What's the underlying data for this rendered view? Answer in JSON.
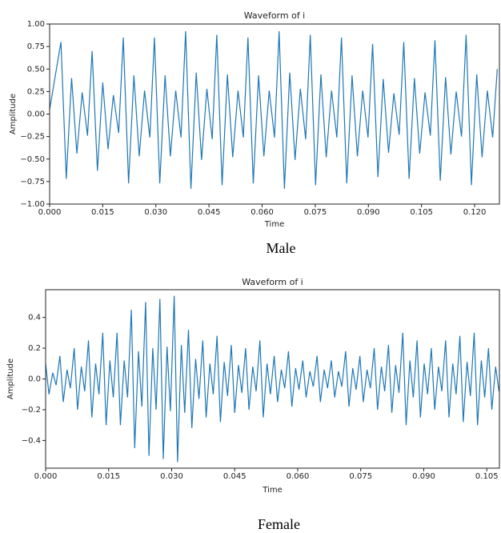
{
  "chart_data": [
    {
      "type": "line",
      "title": "Waveform of i",
      "x_label": "Time",
      "y_label": "Amplitude",
      "caption": "Male",
      "color": "#1f77b4",
      "xlim": [
        0,
        0.127
      ],
      "ylim": [
        -1,
        1
      ],
      "xticks": [
        {
          "value": 0,
          "label": "0.000"
        },
        {
          "value": 0.015,
          "label": "0.015"
        },
        {
          "value": 0.03,
          "label": "0.030"
        },
        {
          "value": 0.045,
          "label": "0.045"
        },
        {
          "value": 0.06,
          "label": "0.060"
        },
        {
          "value": 0.075,
          "label": "0.075"
        },
        {
          "value": 0.09,
          "label": "0.090"
        },
        {
          "value": 0.105,
          "label": "0.105"
        },
        {
          "value": 0.12,
          "label": "0.120"
        }
      ],
      "yticks": [
        {
          "value": -1,
          "label": "−1.00"
        },
        {
          "value": -0.75,
          "label": "−0.75"
        },
        {
          "value": -0.5,
          "label": "−0.50"
        },
        {
          "value": -0.25,
          "label": "−0.25"
        },
        {
          "value": 0,
          "label": "0.00"
        },
        {
          "value": 0.25,
          "label": "0.25"
        },
        {
          "value": 0.5,
          "label": "0.50"
        },
        {
          "value": 0.75,
          "label": "0.75"
        },
        {
          "value": 1,
          "label": "1.00"
        }
      ],
      "x": [
        0,
        0.0032,
        0.0047,
        0.0062,
        0.0077,
        0.0092,
        0.0107,
        0.012,
        0.0135,
        0.015,
        0.0165,
        0.018,
        0.0195,
        0.0208,
        0.0223,
        0.0238,
        0.0253,
        0.0268,
        0.0283,
        0.0296,
        0.0311,
        0.0326,
        0.0341,
        0.0356,
        0.0371,
        0.0384,
        0.0399,
        0.0414,
        0.0429,
        0.0444,
        0.0459,
        0.0472,
        0.0487,
        0.0502,
        0.0517,
        0.0532,
        0.0547,
        0.056,
        0.0575,
        0.059,
        0.0605,
        0.062,
        0.0635,
        0.0648,
        0.0663,
        0.0678,
        0.0693,
        0.0708,
        0.0723,
        0.0736,
        0.0751,
        0.0766,
        0.0781,
        0.0796,
        0.0811,
        0.0824,
        0.0839,
        0.0854,
        0.0869,
        0.0884,
        0.0899,
        0.0912,
        0.0927,
        0.0942,
        0.0957,
        0.0972,
        0.0987,
        0.1,
        0.1015,
        0.103,
        0.1045,
        0.106,
        0.1075,
        0.1088,
        0.1103,
        0.1118,
        0.1133,
        0.1148,
        0.1163,
        0.1176,
        0.1191,
        0.1206,
        0.1221,
        0.1236,
        0.1251,
        0.1264
      ],
      "values": [
        0.05,
        0.8,
        -0.72,
        0.4,
        -0.44,
        0.24,
        -0.24,
        0.7,
        -0.63,
        0.35,
        -0.39,
        0.21,
        -0.21,
        0.85,
        -0.77,
        0.43,
        -0.47,
        0.26,
        -0.26,
        0.85,
        -0.77,
        0.43,
        -0.47,
        0.26,
        -0.26,
        0.92,
        -0.83,
        0.46,
        -0.51,
        0.28,
        -0.28,
        0.88,
        -0.79,
        0.44,
        -0.48,
        0.26,
        -0.26,
        0.85,
        -0.77,
        0.43,
        -0.47,
        0.26,
        -0.26,
        0.92,
        -0.83,
        0.46,
        -0.51,
        0.28,
        -0.28,
        0.88,
        -0.79,
        0.44,
        -0.48,
        0.26,
        -0.26,
        0.85,
        -0.77,
        0.43,
        -0.47,
        0.26,
        -0.26,
        0.78,
        -0.7,
        0.39,
        -0.43,
        0.23,
        -0.23,
        0.8,
        -0.72,
        0.4,
        -0.44,
        0.24,
        -0.24,
        0.82,
        -0.74,
        0.41,
        -0.45,
        0.25,
        -0.25,
        0.88,
        -0.79,
        0.44,
        -0.48,
        0.26,
        -0.26,
        0.5
      ]
    },
    {
      "type": "line",
      "title": "Waveform of i",
      "x_label": "Time",
      "y_label": "Amplitude",
      "caption": "Female",
      "color": "#1f77b4",
      "xlim": [
        0,
        0.108
      ],
      "ylim": [
        -0.58,
        0.58
      ],
      "xticks": [
        {
          "value": 0,
          "label": "0.000"
        },
        {
          "value": 0.015,
          "label": "0.015"
        },
        {
          "value": 0.03,
          "label": "0.030"
        },
        {
          "value": 0.045,
          "label": "0.045"
        },
        {
          "value": 0.06,
          "label": "0.060"
        },
        {
          "value": 0.075,
          "label": "0.075"
        },
        {
          "value": 0.09,
          "label": "0.090"
        },
        {
          "value": 0.105,
          "label": "0.105"
        }
      ],
      "yticks": [
        {
          "value": -0.4,
          "label": "−0.4"
        },
        {
          "value": -0.2,
          "label": "−0.2"
        },
        {
          "value": 0,
          "label": "0.0"
        },
        0.2,
        0.4
      ],
      "x": [
        0,
        0.0008,
        0.0017,
        0.0025,
        0.0034,
        0.0042,
        0.0051,
        0.0059,
        0.0068,
        0.0076,
        0.0085,
        0.0093,
        0.0102,
        0.011,
        0.0119,
        0.0127,
        0.0136,
        0.0144,
        0.0153,
        0.0161,
        0.017,
        0.0178,
        0.0187,
        0.0195,
        0.0204,
        0.0212,
        0.0221,
        0.0229,
        0.0238,
        0.0246,
        0.0255,
        0.0263,
        0.0272,
        0.028,
        0.0289,
        0.0297,
        0.0306,
        0.0314,
        0.0323,
        0.0331,
        0.034,
        0.0348,
        0.0357,
        0.0365,
        0.0374,
        0.0382,
        0.0391,
        0.0399,
        0.0408,
        0.0416,
        0.0425,
        0.0433,
        0.0442,
        0.045,
        0.0459,
        0.0467,
        0.0476,
        0.0484,
        0.0493,
        0.0501,
        0.051,
        0.0518,
        0.0527,
        0.0535,
        0.0544,
        0.0552,
        0.0561,
        0.0569,
        0.0578,
        0.0586,
        0.0595,
        0.0603,
        0.0612,
        0.062,
        0.0629,
        0.0637,
        0.0646,
        0.0654,
        0.0663,
        0.0671,
        0.068,
        0.0688,
        0.0697,
        0.0705,
        0.0714,
        0.0722,
        0.0731,
        0.0739,
        0.0748,
        0.0756,
        0.0765,
        0.0773,
        0.0782,
        0.079,
        0.0799,
        0.0807,
        0.0816,
        0.0824,
        0.0833,
        0.0841,
        0.085,
        0.0858,
        0.0867,
        0.0875,
        0.0884,
        0.0892,
        0.0901,
        0.0909,
        0.0918,
        0.0926,
        0.0935,
        0.0943,
        0.0952,
        0.096,
        0.0969,
        0.0977,
        0.0986,
        0.0994,
        0.1003,
        0.1011,
        0.102,
        0.1028,
        0.1037,
        0.1045,
        0.1054,
        0.1062,
        0.1071,
        0.1079
      ],
      "values": [
        0.1,
        -0.1,
        0.04,
        -0.04,
        0.15,
        -0.15,
        0.06,
        -0.06,
        0.2,
        -0.2,
        0.08,
        -0.08,
        0.25,
        -0.25,
        0.1,
        -0.1,
        0.3,
        -0.3,
        0.12,
        -0.12,
        0.3,
        -0.3,
        0.12,
        -0.12,
        0.45,
        -0.45,
        0.18,
        -0.18,
        0.5,
        -0.5,
        0.2,
        -0.2,
        0.52,
        -0.52,
        0.21,
        -0.21,
        0.54,
        -0.54,
        0.22,
        -0.22,
        0.32,
        -0.32,
        0.13,
        -0.13,
        0.25,
        -0.25,
        0.1,
        -0.1,
        0.28,
        -0.28,
        0.11,
        -0.11,
        0.22,
        -0.22,
        0.09,
        -0.09,
        0.2,
        -0.2,
        0.08,
        -0.08,
        0.25,
        -0.25,
        0.1,
        -0.1,
        0.15,
        -0.15,
        0.06,
        -0.06,
        0.18,
        -0.18,
        0.07,
        -0.07,
        0.12,
        -0.12,
        0.05,
        -0.05,
        0.15,
        -0.15,
        0.06,
        -0.06,
        0.12,
        -0.12,
        0.05,
        -0.05,
        0.18,
        -0.18,
        0.07,
        -0.07,
        0.15,
        -0.15,
        0.06,
        -0.06,
        0.2,
        -0.2,
        0.08,
        -0.08,
        0.22,
        -0.22,
        0.09,
        -0.09,
        0.3,
        -0.3,
        0.12,
        -0.12,
        0.25,
        -0.25,
        0.1,
        -0.1,
        0.2,
        -0.2,
        0.08,
        -0.08,
        0.25,
        -0.25,
        0.1,
        -0.1,
        0.28,
        -0.28,
        0.11,
        -0.11,
        0.3,
        -0.3,
        0.12,
        -0.12,
        0.2,
        -0.2,
        0.08,
        -0.08
      ]
    }
  ]
}
